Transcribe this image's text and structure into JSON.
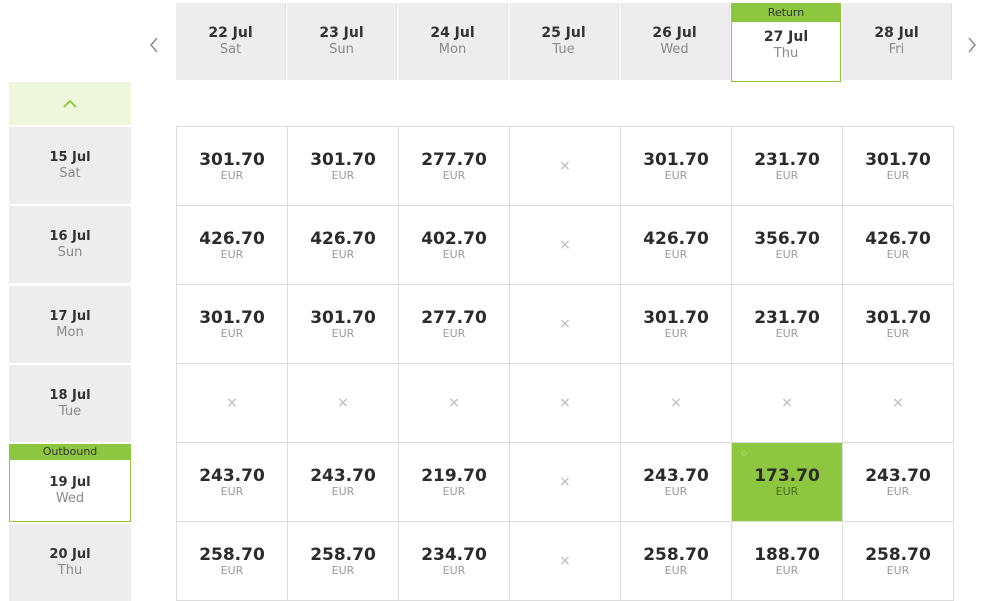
{
  "return_columns": [
    {
      "date": "22 Jul",
      "day": "Sat"
    },
    {
      "date": "23 Jul",
      "day": "Sun"
    },
    {
      "date": "24 Jul",
      "day": "Mon"
    },
    {
      "date": "25 Jul",
      "day": "Tue"
    },
    {
      "date": "26 Jul",
      "day": "Wed"
    },
    {
      "date": "27 Jul",
      "day": "Thu",
      "tag": "Return"
    },
    {
      "date": "28 Jul",
      "day": "Fri"
    }
  ],
  "departure_rows": [
    {
      "date": "15 Jul",
      "day": "Sat"
    },
    {
      "date": "16 Jul",
      "day": "Sun"
    },
    {
      "date": "17 Jul",
      "day": "Mon"
    },
    {
      "date": "18 Jul",
      "day": "Tue"
    },
    {
      "date": "19 Jul",
      "day": "Wed",
      "tag": "Outbound"
    },
    {
      "date": "20 Jul",
      "day": "Thu"
    }
  ],
  "currency": "EUR",
  "unavailable_symbol": "×",
  "best_marker": "☆",
  "prices": [
    [
      "301.70",
      "301.70",
      "277.70",
      null,
      "301.70",
      "231.70",
      "301.70"
    ],
    [
      "426.70",
      "426.70",
      "402.70",
      null,
      "426.70",
      "356.70",
      "426.70"
    ],
    [
      "301.70",
      "301.70",
      "277.70",
      null,
      "301.70",
      "231.70",
      "301.70"
    ],
    [
      null,
      null,
      null,
      null,
      null,
      null,
      null
    ],
    [
      "243.70",
      "243.70",
      "219.70",
      null,
      "243.70",
      "173.70",
      "243.70"
    ],
    [
      "258.70",
      "258.70",
      "234.70",
      null,
      "258.70",
      "188.70",
      "258.70"
    ]
  ],
  "selected": {
    "row": 4,
    "col": 5
  },
  "colors": {
    "accent": "#8dc63f",
    "accent_light": "#eef7dc",
    "header_bg": "#ededed",
    "arrow": "#8a8a8a",
    "arrow_up": "#8dc63f"
  }
}
